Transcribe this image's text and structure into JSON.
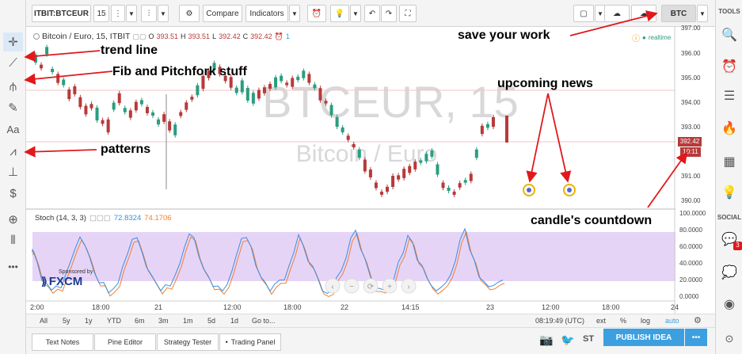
{
  "toolbar": {
    "symbol": "ITBIT:BTCEUR",
    "interval": "15",
    "compare_label": "Compare",
    "indicators_label": "Indicators",
    "btc_label": "BTC"
  },
  "left_toolbar": {
    "tools": [
      "crosshair-icon",
      "trend-line-icon",
      "fib-pitchfork-icon",
      "brush-icon",
      "text-icon",
      "patterns-icon",
      "measure-icon",
      "dollar-icon",
      "zoom-icon",
      "magnet-icon",
      "more-icon"
    ],
    "text_tool_label": "Aa",
    "dollar_label": "$",
    "more_label": "•••"
  },
  "right_panel": {
    "tools_header": "TOOLS",
    "social_header": "SOCIAL",
    "badge_count": "3"
  },
  "chart_legend": {
    "title": "Bitcoin / Euro, 15, ITBIT",
    "o_label": "O",
    "o_value": "393.51",
    "h_label": "H",
    "h_value": "393.51",
    "l_label": "L",
    "l_value": "392.42",
    "c_label": "C",
    "c_value": "392.42",
    "alert_count": "1",
    "realtime_label": "realtime"
  },
  "watermark": {
    "symbol": "BTCEUR, 15",
    "name": "Bitcoin / Euro"
  },
  "price_axis": {
    "ticks": [
      "397.00",
      "396.00",
      "395.00",
      "394.00",
      "393.00",
      "392.00",
      "391.00",
      "390.00"
    ],
    "last_price": "392.42",
    "countdown": "10:11"
  },
  "stoch": {
    "label": "Stoch (14, 3, 3)",
    "k_value": "72.8324",
    "d_value": "74.1706",
    "axis_ticks": [
      "100.0000",
      "80.0000",
      "60.0000",
      "40.0000",
      "20.0000",
      "0.0000"
    ],
    "sponsored_label": "Sponsored by",
    "sponsor": "FXCM"
  },
  "time_axis": {
    "labels": [
      "2:00",
      "18:00",
      "21",
      "12:00",
      "18:00",
      "22",
      "14:15",
      "23",
      "12:00",
      "18:00",
      "24"
    ]
  },
  "range_bar": {
    "ranges": [
      "All",
      "5y",
      "1y",
      "YTD",
      "6m",
      "3m",
      "1m",
      "5d",
      "1d",
      "Go to..."
    ],
    "clock": "08:19:49 (UTC)",
    "options": [
      "ext",
      "%",
      "log",
      "auto"
    ]
  },
  "bottom_tabs": {
    "tabs": [
      "Text Notes",
      "Pine Editor",
      "Strategy Tester",
      "Trading Panel"
    ],
    "publish_label": "PUBLISH IDEA",
    "more_label": "•••"
  },
  "annotations": {
    "save": "save your work",
    "trend": "trend line",
    "fib": "Fib and Pitchfork stuff",
    "patterns": "patterns",
    "news": "upcoming news",
    "countdown": "candle's countdown"
  },
  "colors": {
    "up": "#2a9d7f",
    "down": "#b73a3a",
    "stoch_fill": "#e6d4f7",
    "stoch_k": "#3a8fe0",
    "stoch_d": "#f08030",
    "arrow": "#e0191c",
    "publish": "#3ca0e0"
  }
}
